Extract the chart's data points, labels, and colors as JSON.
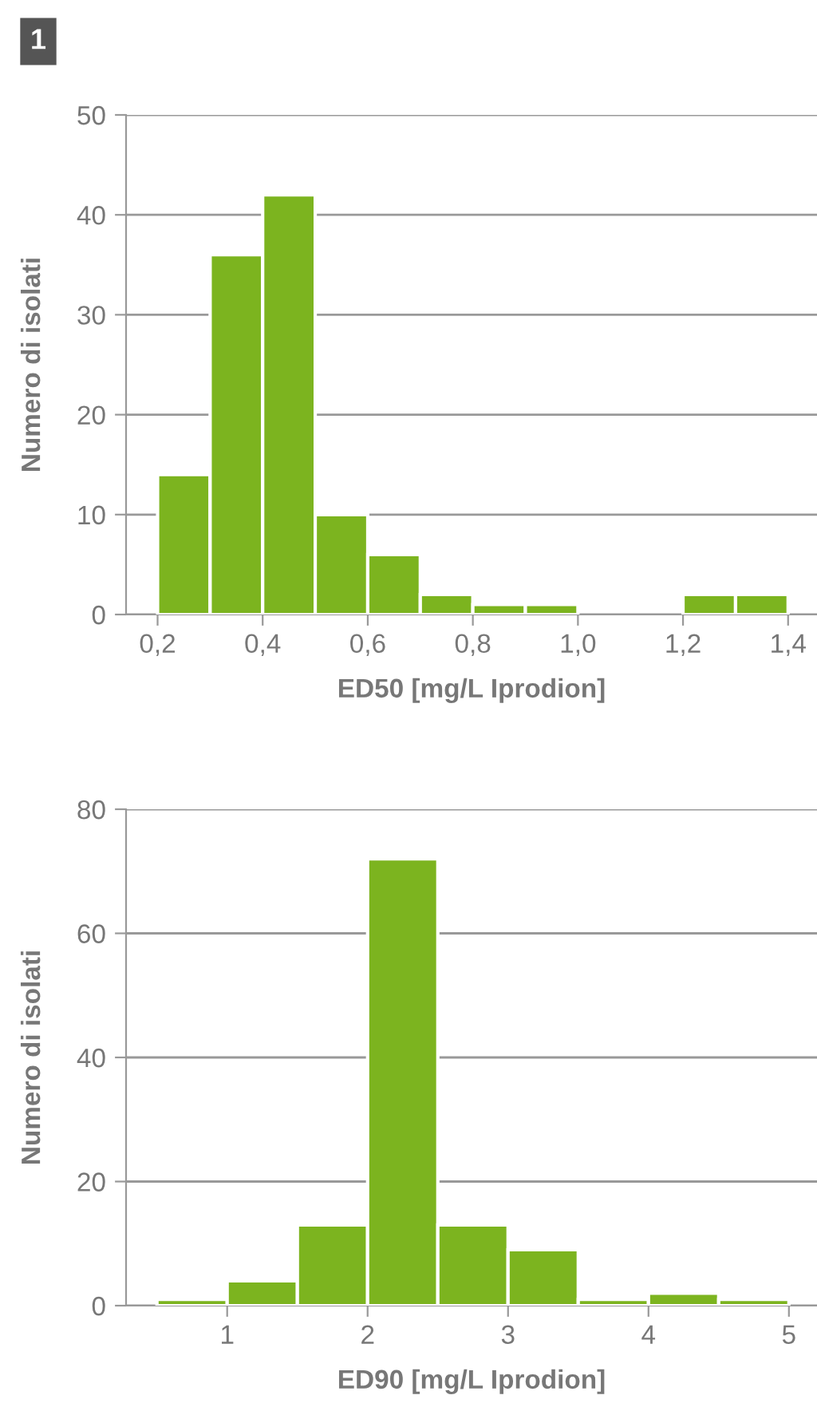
{
  "chart_data": [
    {
      "type": "histogram",
      "annotations": [
        "1"
      ],
      "xlabel": "ED50 [mg/L Iprodion]",
      "ylabel": "Numero di isolati",
      "bins": [
        0.2,
        0.3,
        0.4,
        0.5,
        0.6,
        0.7,
        0.8,
        0.9,
        1.0,
        1.1,
        1.2,
        1.3,
        1.4
      ],
      "values": [
        14,
        36,
        42,
        10,
        6,
        2,
        1,
        1,
        0,
        0,
        2,
        2
      ],
      "color": "#7cb41f",
      "xlim": [
        0.14,
        1.455
      ],
      "xticks": [
        {
          "value": 0.2,
          "label": "0,2"
        },
        {
          "value": 0.4,
          "label": "0,4"
        },
        {
          "value": 0.6,
          "label": "0,6"
        },
        {
          "value": 0.8,
          "label": "0,8"
        },
        {
          "value": 1.0,
          "label": "1,0"
        },
        {
          "value": 1.2,
          "label": "1,2"
        },
        {
          "value": 1.4,
          "label": "1,4"
        }
      ],
      "ylim": [
        0,
        50
      ],
      "yticks": [
        0,
        10,
        20,
        30,
        40,
        50
      ],
      "grid": "y"
    },
    {
      "type": "histogram",
      "xlabel": "ED90 [mg/L Iprodion]",
      "ylabel": "Numero di isolati",
      "bins": [
        0.5,
        1.0,
        1.5,
        2.0,
        2.5,
        3.0,
        3.5,
        4.0,
        4.5,
        5.0
      ],
      "values": [
        1,
        4,
        13,
        72,
        13,
        9,
        1,
        2,
        1
      ],
      "color": "#7cb41f",
      "xlim": [
        0.28,
        5.2
      ],
      "xticks": [
        1,
        2,
        3,
        4,
        5
      ],
      "ylim": [
        0,
        80
      ],
      "yticks": [
        0,
        20,
        40,
        60,
        80
      ],
      "grid": "y"
    }
  ]
}
